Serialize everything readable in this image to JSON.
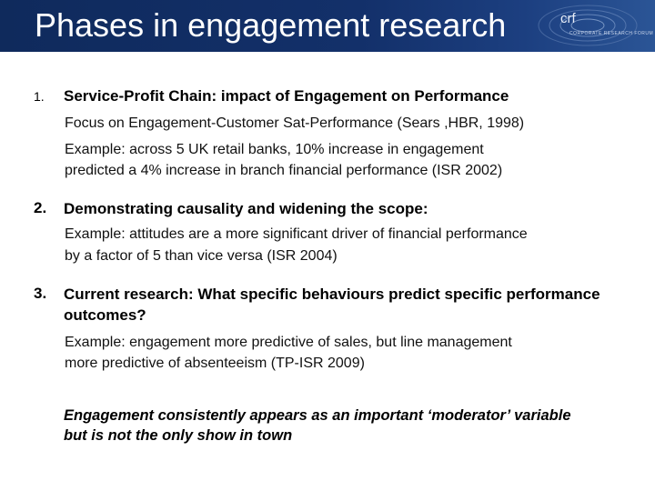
{
  "slide": {
    "title": "Phases in engagement research",
    "logo_text": "crf",
    "logo_subtext": "CORPORATE RESEARCH FORUM"
  },
  "items": [
    {
      "number": "1.",
      "heading": "Service-Profit Chain: impact of Engagement on Performance",
      "lines": [
        "Focus on Engagement-Customer Sat-Performance (Sears ,HBR, 1998)",
        "Example: across 5 UK retail banks, 10% increase in engagement",
        "predicted a 4% increase in branch financial performance (ISR 2002)"
      ]
    },
    {
      "number": "2.",
      "heading": "Demonstrating causality and widening the scope:",
      "lines": [
        "Example: attitudes are a more significant driver of financial performance",
        "by a factor of 5 than vice versa (ISR 2004)"
      ]
    },
    {
      "number": "3.",
      "heading_lines": [
        "Current research: What specific behaviours predict specific performance",
        "outcomes?"
      ],
      "lines": [
        "Example: engagement more predictive of sales, but line management",
        "more predictive of absenteeism (TP-ISR 2009)"
      ]
    }
  ],
  "closing": {
    "lines": [
      "Engagement consistently appears as an important ‘moderator’ variable",
      "but is not the only show in town"
    ]
  }
}
